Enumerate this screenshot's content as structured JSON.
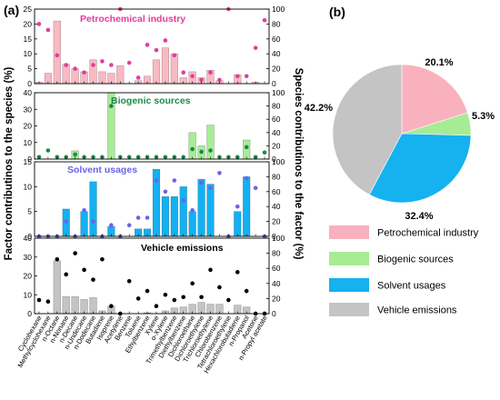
{
  "panel_a_label": "(a)",
  "panel_b_label": "(b)",
  "colors": {
    "petro_bar": "#f9b9c3",
    "petro_dot": "#e23d9b",
    "bio_bar": "#a8ec97",
    "bio_dot": "#1c8a4a",
    "solv_bar": "#13b1f2",
    "solv_dot": "#6b63ea",
    "veh_bar": "#c4c4c4",
    "veh_dot": "#000000",
    "pie_petro": "#f9b2bd",
    "pie_bio": "#a7ec95",
    "pie_solv": "#16b1ef",
    "pie_veh": "#c4c4c4"
  },
  "chart_data": [
    {
      "type": "bar",
      "panel": "(a)",
      "ylabel": "Factor contributinos to the species (%)",
      "ylabel_right": "Species contributinos to the factor (%)",
      "categories": [
        "Cyclohexane",
        "Methylcyclohexane",
        "n-Octane",
        "n-Nonane",
        "n-Decane",
        "n-Undecane",
        "n-Dodecane",
        "Butadiene",
        "Isoprene",
        "Acetylene",
        "Benzene",
        "Toluene",
        "Ethylbenzene",
        "Xylene",
        "o-Xylene",
        "Trimethylbenzene",
        "Diethylbenzene",
        "Dichloroethane",
        "Dichloroethylene",
        "Trichloroethylene",
        "Chlorobenzene",
        "Tetrachloroethylene",
        "Hexachlorobutadiene",
        "n-Propanol",
        "Acetone",
        "n-Propyl acetate"
      ],
      "panels": [
        {
          "title": "Petrochemical industry",
          "ylim": [
            0,
            25
          ],
          "yticks": [
            "0",
            "5",
            "10",
            "15",
            "20",
            "25"
          ],
          "y2lim": [
            0,
            100
          ],
          "y2ticks": [
            "0",
            "20",
            "40",
            "60",
            "80",
            "100"
          ],
          "bars": [
            0.5,
            3.5,
            21,
            6.5,
            5,
            4,
            8,
            4,
            3.5,
            6,
            0,
            1,
            2.5,
            8,
            12,
            10,
            2,
            4,
            2,
            4.5,
            1,
            0,
            3,
            0,
            0.5,
            0
          ],
          "dots": [
            80,
            72,
            38,
            25,
            20,
            15,
            25,
            30,
            25,
            100,
            28,
            8,
            52,
            45,
            58,
            38,
            15,
            10,
            5,
            15,
            5,
            100,
            10,
            10,
            48,
            85
          ]
        },
        {
          "title": "Biogenic sources",
          "ylim": [
            0,
            40
          ],
          "yticks": [
            "0",
            "10",
            "20",
            "30",
            "40"
          ],
          "y2lim": [
            0,
            100
          ],
          "y2ticks": [
            "0",
            "20",
            "40",
            "60",
            "80",
            "100"
          ],
          "bars": [
            0,
            0,
            0,
            0,
            5,
            0,
            0,
            0,
            40,
            0,
            0,
            0,
            0,
            0,
            0,
            0,
            0,
            16,
            8,
            20.5,
            0,
            0,
            0,
            11.5,
            0,
            0
          ],
          "dots": [
            3,
            13,
            3,
            3,
            7,
            3,
            3,
            3,
            80,
            3,
            3,
            3,
            3,
            3,
            3,
            3,
            3,
            15,
            11,
            13,
            3,
            3,
            3,
            18,
            3,
            10
          ]
        },
        {
          "title": "Solvent usages",
          "ylim": [
            0,
            15
          ],
          "yticks": [
            "0",
            "5",
            "10",
            "15"
          ],
          "y2lim": [
            0,
            100
          ],
          "y2ticks": [
            "0",
            "20",
            "40",
            "60",
            "80",
            "100"
          ],
          "bars": [
            0,
            0,
            0,
            5.5,
            0,
            5,
            11,
            0,
            2,
            0,
            0,
            1.5,
            1.5,
            13.5,
            8,
            8,
            10,
            5,
            11.5,
            10.5,
            0,
            0,
            5,
            12,
            0,
            0
          ],
          "dots": [
            0,
            0,
            0,
            20,
            0,
            35,
            20,
            0,
            15,
            0,
            15,
            25,
            25,
            75,
            60,
            75,
            48,
            35,
            72,
            65,
            85,
            0,
            40,
            78,
            65,
            0
          ]
        },
        {
          "title": "Vehicle emissions",
          "ylim": [
            0,
            40
          ],
          "yticks": [
            "0",
            "10",
            "20",
            "30",
            "40"
          ],
          "y2lim": [
            0,
            100
          ],
          "y2ticks": [
            "0",
            "20",
            "40",
            "60",
            "80",
            "100"
          ],
          "bars": [
            0,
            0,
            28,
            9,
            9,
            7.5,
            8.5,
            1.5,
            4,
            0,
            0,
            0,
            0.5,
            0,
            1.5,
            3,
            3.5,
            5,
            6,
            5,
            5,
            0,
            4.5,
            3.5,
            0,
            0
          ],
          "dots": [
            18,
            16,
            72,
            52,
            80,
            58,
            45,
            72,
            10,
            0,
            43,
            20,
            30,
            10,
            25,
            18,
            22,
            40,
            22,
            58,
            35,
            18,
            55,
            30,
            0,
            0
          ]
        }
      ]
    },
    {
      "type": "pie",
      "panel": "(b)",
      "labels": [
        "Petrochemical industry",
        "Biogenic sources",
        "Solvent usages",
        "Vehicle emissions"
      ],
      "values": [
        20.1,
        5.3,
        32.4,
        42.2
      ],
      "value_labels": [
        "20.1%",
        "5.3%",
        "32.4%",
        "42.2%"
      ],
      "legend_placement": "below"
    }
  ]
}
